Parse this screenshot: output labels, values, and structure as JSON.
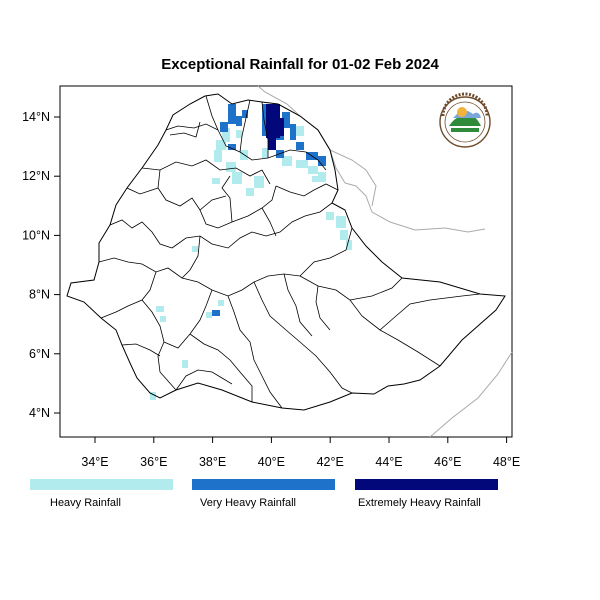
{
  "title": "Exceptional Rainfall for 01-02 Feb 2024",
  "axes": {
    "x_ticks": [
      {
        "value": 34,
        "label": "34°E"
      },
      {
        "value": 36,
        "label": "36°E"
      },
      {
        "value": 38,
        "label": "38°E"
      },
      {
        "value": 40,
        "label": "40°E"
      },
      {
        "value": 42,
        "label": "42°E"
      },
      {
        "value": 44,
        "label": "44°E"
      },
      {
        "value": 46,
        "label": "46°E"
      },
      {
        "value": 48,
        "label": "48°E"
      }
    ],
    "y_ticks": [
      {
        "value": 4,
        "label": "4°N"
      },
      {
        "value": 6,
        "label": "6°N"
      },
      {
        "value": 8,
        "label": "8°N"
      },
      {
        "value": 10,
        "label": "10°N"
      },
      {
        "value": 12,
        "label": "12°N"
      },
      {
        "value": 14,
        "label": "14°N"
      }
    ],
    "lon_range": [
      32.8,
      48.1
    ],
    "lat_range": [
      3.1,
      15.0
    ]
  },
  "legend": [
    {
      "label": "Heavy Rainfall",
      "color": "#b2ebee"
    },
    {
      "label": "Very Heavy Rainfall",
      "color": "#1f72c9"
    },
    {
      "label": "Extremely Heavy Rainfall",
      "color": "#02087a"
    }
  ],
  "logo": {
    "icon": "meteorology-agency-seal-icon"
  }
}
